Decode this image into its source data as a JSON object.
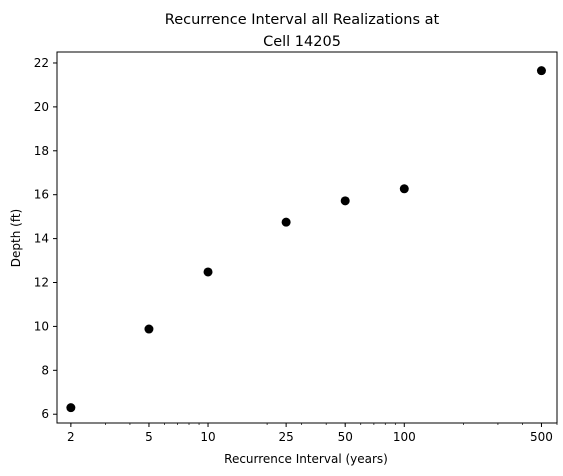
{
  "chart_data": {
    "type": "scatter",
    "title_lines": [
      "Recurrence Interval all Realizations at",
      "Cell 14205"
    ],
    "xlabel": "Recurrence Interval (years)",
    "ylabel": "Depth (ft)",
    "x_scale": "log",
    "xlim": [
      1.7,
      600
    ],
    "ylim": [
      5.6,
      22.5
    ],
    "x_ticks": [
      2,
      5,
      10,
      25,
      50,
      100,
      500
    ],
    "x_tick_labels": [
      "2",
      "5",
      "10",
      "25",
      "50",
      "100",
      "500"
    ],
    "y_ticks": [
      6,
      8,
      10,
      12,
      14,
      16,
      18,
      20,
      22
    ],
    "y_tick_labels": [
      "6",
      "8",
      "10",
      "12",
      "14",
      "16",
      "18",
      "20",
      "22"
    ],
    "grid": false,
    "marker_color": "#000000",
    "points": [
      {
        "x": 2,
        "y": 6.3
      },
      {
        "x": 5,
        "y": 9.88
      },
      {
        "x": 10,
        "y": 12.48
      },
      {
        "x": 25,
        "y": 14.75
      },
      {
        "x": 50,
        "y": 15.72
      },
      {
        "x": 100,
        "y": 16.27
      },
      {
        "x": 500,
        "y": 21.65
      }
    ]
  }
}
